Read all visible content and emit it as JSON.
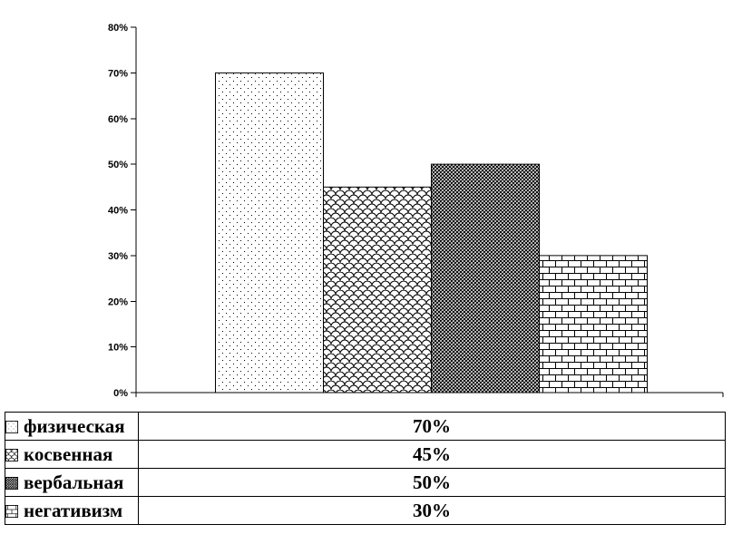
{
  "chart_data": {
    "type": "bar",
    "title": "",
    "xlabel": "",
    "ylabel": "",
    "categories": [
      "физическая",
      "косвенная",
      "вербальная",
      "негативизм"
    ],
    "values": [
      70,
      45,
      50,
      30
    ],
    "value_labels": [
      "70%",
      "45%",
      "50%",
      "30%"
    ],
    "ylim": [
      0,
      80
    ],
    "ytick_step": 10,
    "ytick_labels": [
      "0%",
      "10%",
      "20%",
      "30%",
      "40%",
      "50%",
      "60%",
      "70%",
      "80%"
    ],
    "bar_patterns": [
      "dots",
      "scale",
      "trellis",
      "brick"
    ],
    "bar_pattern_icons": [
      "dots-pattern-swatch",
      "scale-pattern-swatch",
      "trellis-pattern-swatch",
      "brick-pattern-swatch"
    ],
    "grid": false,
    "legend_position": "bottom-table",
    "colors": {
      "foreground": "#000000",
      "background": "#ffffff"
    }
  },
  "legend": {
    "rows": [
      {
        "label": "физическая",
        "value": "70%",
        "pattern": "dots"
      },
      {
        "label": "косвенная",
        "value": "45%",
        "pattern": "scale"
      },
      {
        "label": "вербальная",
        "value": "50%",
        "pattern": "trellis"
      },
      {
        "label": "негативизм",
        "value": "30%",
        "pattern": "brick"
      }
    ]
  }
}
